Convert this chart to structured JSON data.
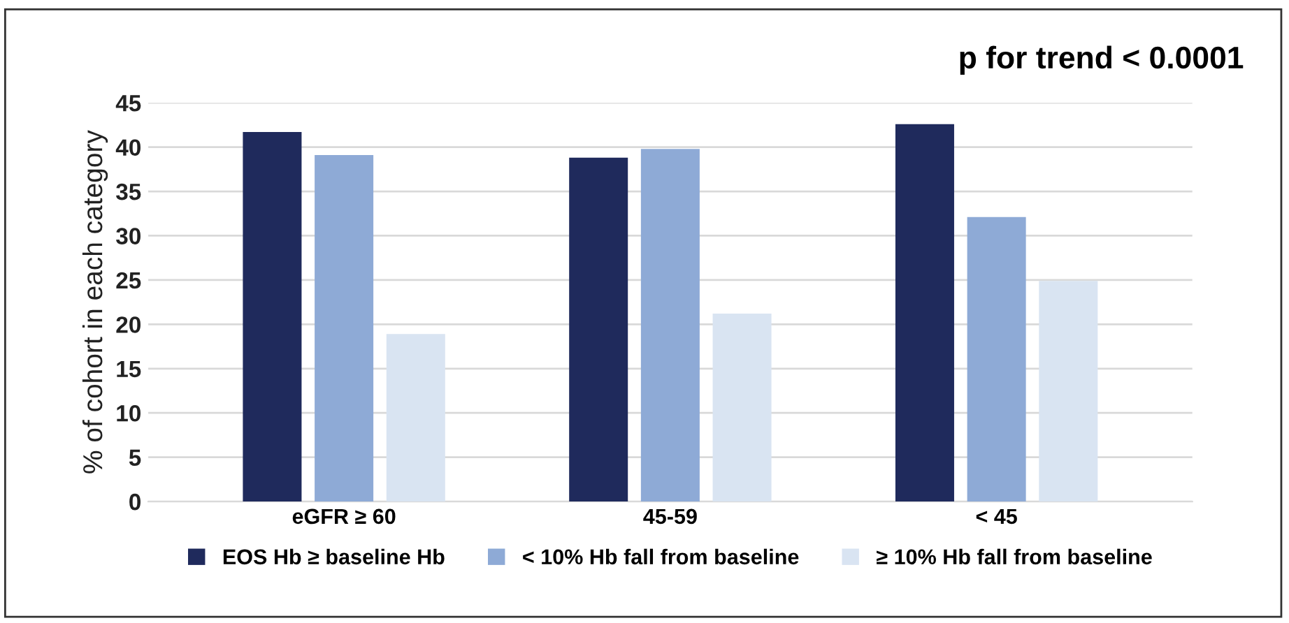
{
  "chart_data": {
    "type": "bar",
    "ylabel": "% of cohort in each category",
    "annotations": [
      "p for trend < 0.0001"
    ],
    "categories": [
      "eGFR ≥ 60",
      "45-59",
      "< 45"
    ],
    "series": [
      {
        "name": "EOS Hb ≥ baseline Hb",
        "color": "#1f2a5c",
        "values": [
          41.7,
          38.8,
          42.6
        ]
      },
      {
        "name": "< 10% Hb fall from baseline",
        "color": "#8eaad6",
        "values": [
          39.1,
          39.8,
          32.1
        ]
      },
      {
        "name": "≥ 10% Hb fall from baseline",
        "color": "#d9e4f2",
        "values": [
          18.9,
          21.2,
          24.9
        ]
      }
    ],
    "ylim": [
      0,
      45
    ],
    "yticks": [
      0,
      5,
      10,
      15,
      20,
      25,
      30,
      35,
      40,
      45
    ],
    "grid": "y",
    "legend": "bottom"
  }
}
